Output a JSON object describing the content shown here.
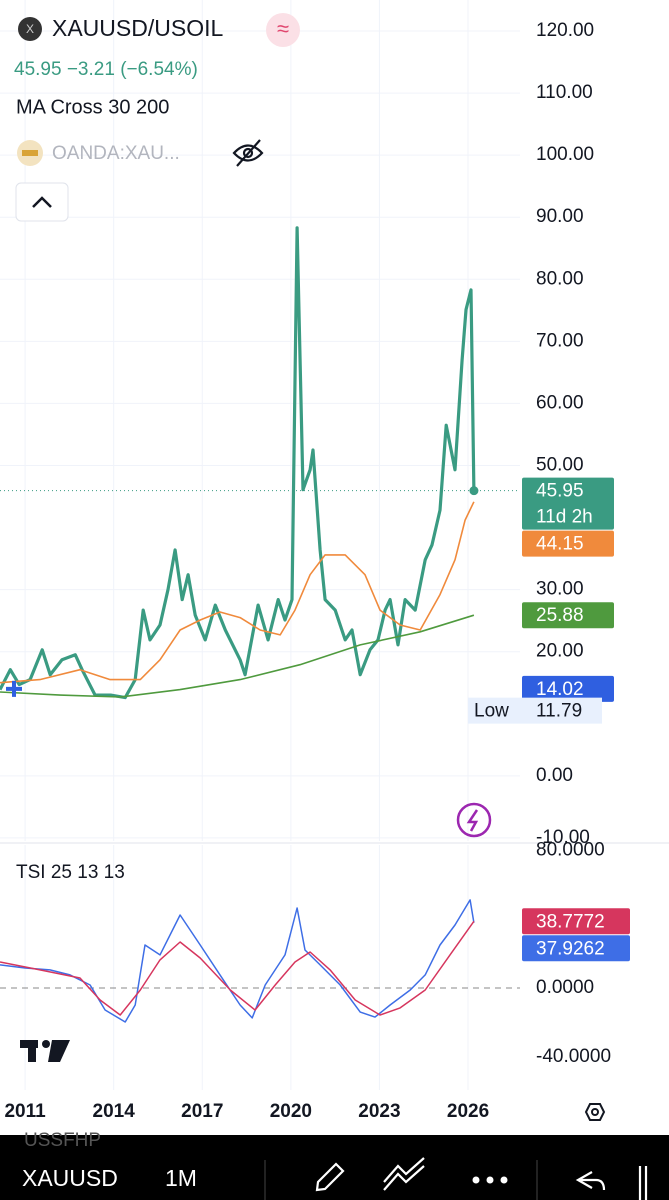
{
  "header": {
    "symbol": "XAUUSD/USOIL",
    "last": "45.95",
    "change": "−3.21",
    "change_pct": "(−6.54%)",
    "indicator": "MA Cross 30 200",
    "compare": "OANDA:XAU..."
  },
  "chart_data": [
    {
      "type": "line",
      "xlim": [
        2010.15,
        2027.76
      ],
      "ylim": [
        -10.5,
        125
      ],
      "grid": true,
      "yticks": [
        {
          "value": 120,
          "label": "120.00"
        },
        {
          "value": 110,
          "label": "110.00"
        },
        {
          "value": 100,
          "label": "100.00"
        },
        {
          "value": 90,
          "label": "90.00"
        },
        {
          "value": 80,
          "label": "80.00"
        },
        {
          "value": 70,
          "label": "70.00"
        },
        {
          "value": 60,
          "label": "60.00"
        },
        {
          "value": 50,
          "label": "50.00"
        },
        {
          "value": 30,
          "label": "30.00"
        },
        {
          "value": 20,
          "label": "20.00"
        },
        {
          "value": 0,
          "label": "0.00"
        },
        {
          "value": -10,
          "label": "-10.00"
        }
      ],
      "series": [
        {
          "color": "#3a9b82",
          "width": 3.2,
          "x": [
            2010.15,
            2010.5,
            2010.8,
            2011.17,
            2011.58,
            2011.85,
            2012.25,
            2012.7,
            2012.93,
            2013.37,
            2013.9,
            2014.39,
            2014.73,
            2015.0,
            2015.23,
            2015.57,
            2015.84,
            2016.08,
            2016.32,
            2016.52,
            2016.76,
            2017.1,
            2017.44,
            2017.78,
            2018.28,
            2018.45,
            2018.89,
            2019.23,
            2019.57,
            2019.8,
            2020.04,
            2020.21,
            2020.41,
            2020.65,
            2020.75,
            2020.99,
            2021.16,
            2021.5,
            2021.84,
            2022.07,
            2022.35,
            2022.68,
            2022.95,
            2023.19,
            2023.36,
            2023.63,
            2023.87,
            2024.21,
            2024.55,
            2024.78,
            2025.05,
            2025.26,
            2025.56,
            2025.8,
            2025.93,
            2026.1,
            2026.2
          ],
          "values": [
            13.9,
            17.1,
            14.7,
            15.5,
            20.3,
            16.3,
            18.7,
            19.5,
            17.1,
            13.0,
            13.0,
            12.6,
            15.5,
            26.7,
            21.9,
            24.3,
            30.0,
            36.4,
            28.4,
            32.4,
            25.9,
            21.9,
            27.5,
            23.5,
            18.7,
            16.3,
            27.5,
            21.9,
            28.4,
            25.1,
            28.4,
            88.3,
            46.1,
            49.3,
            52.5,
            36.4,
            28.4,
            26.7,
            21.9,
            23.5,
            16.3,
            20.3,
            21.9,
            26.7,
            28.4,
            21.1,
            28.4,
            26.7,
            34.8,
            37.2,
            42.8,
            56.5,
            49.3,
            67.0,
            75.1,
            78.3,
            45.95
          ]
        },
        {
          "color": "#f08a3c",
          "width": 1.6,
          "x": [
            2010.15,
            2011.5,
            2012.86,
            2013.88,
            2014.9,
            2015.57,
            2016.25,
            2016.93,
            2017.6,
            2018.28,
            2018.96,
            2019.64,
            2020.14,
            2020.65,
            2021.16,
            2021.84,
            2022.51,
            2023.02,
            2023.7,
            2024.38,
            2025.05,
            2025.56,
            2025.9,
            2026.2
          ],
          "values": [
            15,
            15.5,
            17.1,
            15.5,
            15.5,
            18.7,
            23.5,
            25.1,
            26.4,
            25.5,
            23.5,
            22.7,
            26.7,
            32.4,
            35.6,
            35.6,
            32.4,
            26.7,
            24.3,
            23.5,
            29.2,
            34.8,
            41.2,
            44.15
          ]
        },
        {
          "color": "#4f9a3e",
          "width": 1.6,
          "x": [
            2010.15,
            2012.19,
            2014.22,
            2016.25,
            2018.28,
            2020.31,
            2022.35,
            2024.38,
            2026.2
          ],
          "values": [
            13.5,
            13.0,
            12.7,
            13.9,
            15.5,
            17.9,
            21.1,
            23.2,
            25.88
          ]
        }
      ],
      "price_labels": [
        {
          "value": 45.95,
          "color": "#3a9b82",
          "countdown": "11d 2h"
        },
        {
          "value": 44.15,
          "color": "#f08a3c"
        },
        {
          "value": 25.88,
          "color": "#4f9a3e"
        },
        {
          "value": 14.02,
          "color": "#2f5fe0"
        }
      ],
      "low": {
        "label": "Low",
        "value": 11.79
      }
    },
    {
      "type": "line",
      "title": "TSI 25 13 13",
      "xlim": [
        2010.15,
        2027.76
      ],
      "ylim": [
        -59.3,
        83.1
      ],
      "xticks": [
        2011,
        2014,
        2017,
        2020,
        2023,
        2026
      ],
      "yticks": [
        {
          "value": 80,
          "label": "80.0000"
        },
        {
          "value": 0,
          "label": "0.0000"
        },
        {
          "value": -40,
          "label": "-40.0000"
        }
      ],
      "series": [
        {
          "color": "#3e6ee6",
          "width": 1.5,
          "x": [
            2010.15,
            2011.0,
            2011.84,
            2012.52,
            2013.2,
            2013.71,
            2014.39,
            2014.73,
            2015.06,
            2015.57,
            2016.25,
            2016.93,
            2017.6,
            2018.28,
            2018.69,
            2019.13,
            2019.8,
            2020.21,
            2020.48,
            2020.99,
            2021.67,
            2022.35,
            2022.85,
            2023.36,
            2024.04,
            2024.55,
            2025.05,
            2025.56,
            2026.07,
            2026.2
          ],
          "values": [
            13.4,
            11.6,
            10.5,
            7.6,
            1.7,
            -12.8,
            -19.8,
            -9.9,
            25,
            19.2,
            42.4,
            25,
            7.6,
            -9.9,
            -17.4,
            1.7,
            19.2,
            46.5,
            22.1,
            13.4,
            1.7,
            -14,
            -16.9,
            -9.9,
            -1.2,
            7.6,
            25,
            36.6,
            51.2,
            37.9262
          ]
        },
        {
          "color": "#d6365e",
          "width": 1.5,
          "x": [
            2010.15,
            2011.5,
            2012.86,
            2013.54,
            2014.22,
            2014.9,
            2015.57,
            2016.25,
            2016.93,
            2017.95,
            2018.79,
            2019.47,
            2020.14,
            2020.65,
            2021.33,
            2022.18,
            2023.02,
            2023.7,
            2024.55,
            2025.39,
            2026.2
          ],
          "values": [
            15.1,
            10.5,
            5.8,
            -7,
            -15.7,
            -1.2,
            16.3,
            26.7,
            17.4,
            -1.2,
            -12.8,
            1.7,
            15.1,
            20.9,
            10.5,
            -7,
            -15.7,
            -11.6,
            -1.2,
            19.2,
            38.7772
          ]
        }
      ],
      "price_labels": [
        {
          "value": 38.7772,
          "color": "#d6365e"
        },
        {
          "value": 37.9262,
          "color": "#3e6ee6"
        }
      ]
    }
  ],
  "toolbar": {
    "watermark": "USSFHP",
    "symbol": "XAUUSD",
    "interval": "1M"
  }
}
